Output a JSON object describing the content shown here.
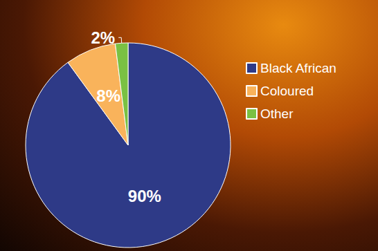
{
  "chart_data": {
    "type": "pie",
    "categories": [
      "Black African",
      "Coloured",
      "Other"
    ],
    "values": [
      90,
      8,
      2
    ],
    "value_labels": [
      "90%",
      "8%",
      "2%"
    ],
    "colors": [
      "#2E3A87",
      "#F9B35B",
      "#7AC143"
    ],
    "data_labels": true,
    "legend": "right"
  }
}
